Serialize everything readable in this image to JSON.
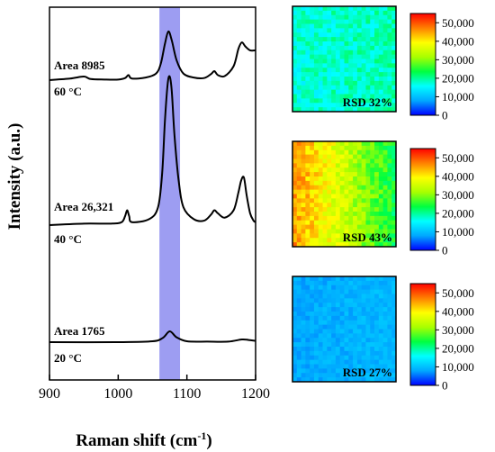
{
  "chart_data": [
    {
      "type": "line",
      "xlabel": "Raman shift (cm",
      "xlabel_sup": "-1",
      "xlabel_end": ")",
      "ylabel": "Intensity (a.u.)",
      "xlim": [
        900,
        1200
      ],
      "xticks": [
        900,
        1000,
        1100,
        1200
      ],
      "highlight_band": [
        1060,
        1090
      ],
      "band_color": "#8c8cf0",
      "series": [
        {
          "area_label": "Area  8985",
          "temp_label": "60 °C",
          "baseline": 0.55,
          "scale": 0.075,
          "points": [
            [
              900,
              0.02
            ],
            [
              930,
              0.05
            ],
            [
              950,
              0.09
            ],
            [
              960,
              0.04
            ],
            [
              980,
              0.03
            ],
            [
              1000,
              0.03
            ],
            [
              1010,
              0.06
            ],
            [
              1015,
              0.12
            ],
            [
              1020,
              0.05
            ],
            [
              1040,
              0.07
            ],
            [
              1055,
              0.15
            ],
            [
              1062,
              0.35
            ],
            [
              1068,
              0.75
            ],
            [
              1073,
              1.0
            ],
            [
              1078,
              0.82
            ],
            [
              1085,
              0.42
            ],
            [
              1095,
              0.15
            ],
            [
              1110,
              0.07
            ],
            [
              1125,
              0.06
            ],
            [
              1135,
              0.14
            ],
            [
              1140,
              0.2
            ],
            [
              1145,
              0.12
            ],
            [
              1155,
              0.1
            ],
            [
              1168,
              0.3
            ],
            [
              1175,
              0.65
            ],
            [
              1180,
              0.78
            ],
            [
              1185,
              0.7
            ],
            [
              1192,
              0.62
            ],
            [
              1200,
              0.62
            ]
          ]
        },
        {
          "area_label": "Area  26,321",
          "temp_label": "40 °C",
          "baseline": 0.0,
          "scale": 0.29,
          "points": [
            [
              900,
              0.0
            ],
            [
              950,
              0.01
            ],
            [
              990,
              0.01
            ],
            [
              1005,
              0.02
            ],
            [
              1010,
              0.06
            ],
            [
              1013,
              0.1
            ],
            [
              1016,
              0.06
            ],
            [
              1020,
              0.02
            ],
            [
              1045,
              0.04
            ],
            [
              1058,
              0.12
            ],
            [
              1064,
              0.35
            ],
            [
              1068,
              0.7
            ],
            [
              1072,
              0.95
            ],
            [
              1075,
              1.0
            ],
            [
              1078,
              0.9
            ],
            [
              1082,
              0.6
            ],
            [
              1088,
              0.3
            ],
            [
              1095,
              0.12
            ],
            [
              1110,
              0.04
            ],
            [
              1125,
              0.03
            ],
            [
              1135,
              0.07
            ],
            [
              1140,
              0.1
            ],
            [
              1145,
              0.08
            ],
            [
              1155,
              0.05
            ],
            [
              1168,
              0.1
            ],
            [
              1175,
              0.22
            ],
            [
              1179,
              0.3
            ],
            [
              1183,
              0.32
            ],
            [
              1187,
              0.2
            ],
            [
              1192,
              0.08
            ],
            [
              1197,
              0.03
            ],
            [
              1200,
              0.02
            ]
          ]
        },
        {
          "area_label": "Area  1765",
          "temp_label": "20 °C",
          "baseline": -1.65,
          "scale": 0.02,
          "points": [
            [
              900,
              0.0
            ],
            [
              1000,
              0.0
            ],
            [
              1050,
              0.08
            ],
            [
              1065,
              0.4
            ],
            [
              1075,
              1.0
            ],
            [
              1085,
              0.45
            ],
            [
              1100,
              0.08
            ],
            [
              1130,
              0.05
            ],
            [
              1160,
              0.05
            ],
            [
              1180,
              0.25
            ],
            [
              1190,
              0.2
            ],
            [
              1200,
              0.12
            ]
          ]
        }
      ]
    },
    {
      "type": "heatmap",
      "panels": [
        {
          "rsd_label": "RSD  32%",
          "mean_level": 0.33,
          "grad": 0.03,
          "noise": 0.12
        },
        {
          "rsd_label": "RSD  43%",
          "mean_level": 0.62,
          "grad": -0.42,
          "noise": 0.14
        },
        {
          "rsd_label": "RSD  27%",
          "mean_level": 0.16,
          "grad": 0.02,
          "noise": 0.06
        }
      ],
      "colorbar": {
        "ticks": [
          "0",
          "10,000",
          "20,000",
          "30,000",
          "40,000",
          "50,000"
        ],
        "range": [
          0,
          55000
        ],
        "colors": [
          "#0000ff",
          "#00a8ff",
          "#00ffff",
          "#00ff40",
          "#a8ff00",
          "#ffff00",
          "#ff8000",
          "#ff0000"
        ]
      }
    }
  ]
}
